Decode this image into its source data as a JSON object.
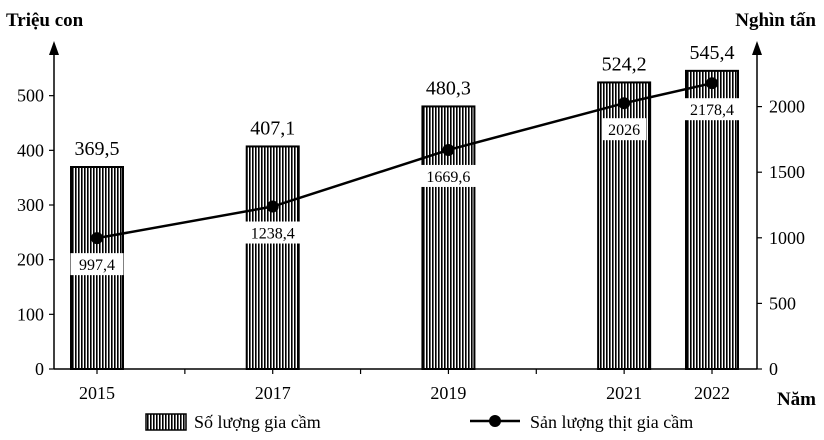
{
  "chart_data": {
    "type": "bar+line",
    "x": [
      2015,
      2017,
      2019,
      2021,
      2022
    ],
    "categories": [
      "2015",
      "2017",
      "2019",
      "2021",
      "2022"
    ],
    "xlabel": "Năm",
    "xlim": [
      2015,
      2022
    ],
    "series": [
      {
        "name": "Số lượng gia cầm",
        "type": "bar",
        "axis": "left",
        "values": [
          369.5,
          407.1,
          480.3,
          524.2,
          545.4
        ],
        "labels": [
          "369,5",
          "407,1",
          "480,3",
          "524,2",
          "545,4"
        ]
      },
      {
        "name": "Sản lượng thịt gia cầm",
        "type": "line",
        "axis": "right",
        "values": [
          997.4,
          1238.4,
          1669.6,
          2026,
          2178.4
        ],
        "labels": [
          "997,4",
          "1238,4",
          "1669,6",
          "2026",
          "2178,4"
        ]
      }
    ],
    "left_axis": {
      "label": "Triệu con",
      "ylim": [
        0,
        600
      ],
      "ticks": [
        0,
        100,
        200,
        300,
        400,
        500
      ]
    },
    "right_axis": {
      "label": "Nghìn tấn",
      "ylim": [
        0,
        2500
      ],
      "ticks": [
        0,
        500,
        1000,
        1500,
        2000
      ]
    },
    "grid": false,
    "legend": "bottom"
  }
}
